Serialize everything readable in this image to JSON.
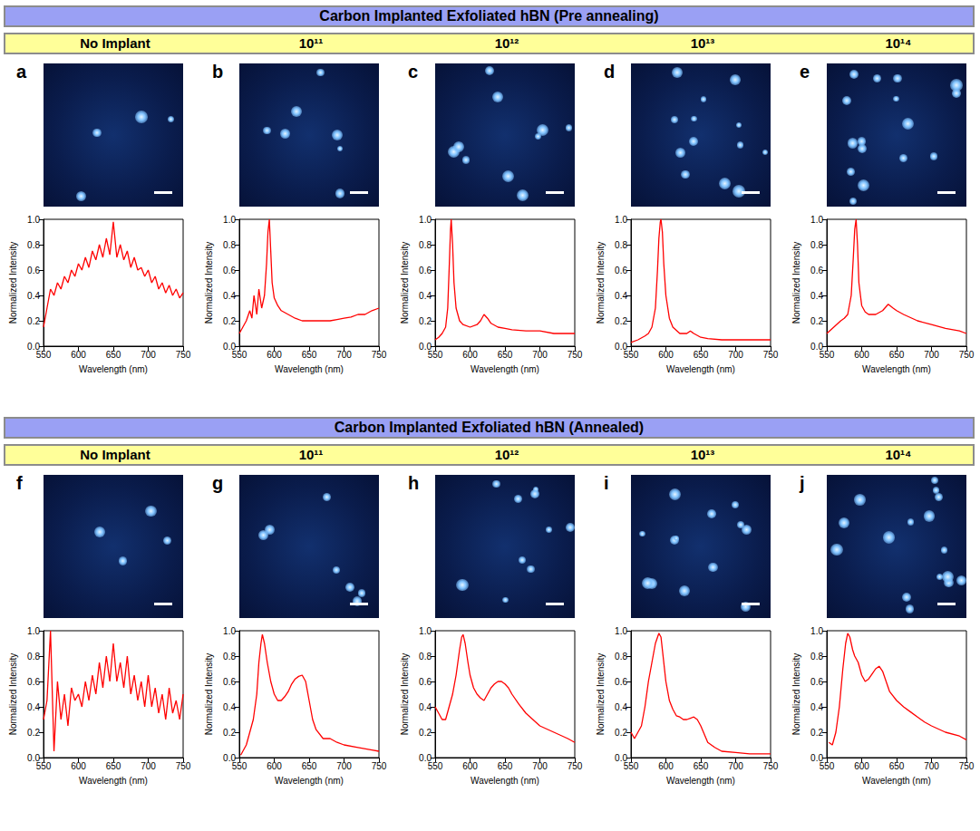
{
  "banners": [
    "Carbon Implanted Exfoliated hBN (Pre annealing)",
    "Carbon Implanted Exfoliated hBN (Annealed)"
  ],
  "chart_data": [
    {
      "type": "line",
      "panel_label": "a",
      "title": "No Implant",
      "xlabel": "Wavelength (nm)",
      "ylabel": "Normalized Intensity",
      "color": "#ff0000",
      "grid": false,
      "xlim": [
        550,
        750
      ],
      "xticks": [
        550,
        600,
        650,
        700,
        750
      ],
      "ylim": [
        0,
        1
      ],
      "yticks": [
        {
          "value": 0,
          "label": "0.0"
        },
        0.2,
        0.4,
        0.6,
        0.8,
        {
          "value": 1,
          "label": "1.0"
        }
      ],
      "x": [
        550,
        555,
        560,
        565,
        570,
        575,
        580,
        585,
        590,
        595,
        600,
        605,
        610,
        615,
        620,
        625,
        630,
        635,
        640,
        645,
        650,
        655,
        660,
        665,
        670,
        675,
        680,
        685,
        690,
        695,
        700,
        705,
        710,
        715,
        720,
        725,
        730,
        735,
        740,
        745,
        750
      ],
      "values": [
        0.15,
        0.3,
        0.45,
        0.4,
        0.5,
        0.45,
        0.55,
        0.5,
        0.6,
        0.55,
        0.65,
        0.6,
        0.7,
        0.62,
        0.75,
        0.68,
        0.8,
        0.7,
        0.85,
        0.72,
        0.98,
        0.7,
        0.8,
        0.68,
        0.75,
        0.62,
        0.7,
        0.6,
        0.62,
        0.55,
        0.6,
        0.5,
        0.55,
        0.45,
        0.5,
        0.42,
        0.48,
        0.4,
        0.45,
        0.38,
        0.42
      ]
    },
    {
      "type": "line",
      "panel_label": "b",
      "title": "10¹¹",
      "xlabel": "Wavelength (nm)",
      "ylabel": "Normalized Intensity",
      "color": "#ff0000",
      "grid": false,
      "xlim": [
        550,
        750
      ],
      "xticks": [
        550,
        600,
        650,
        700,
        750
      ],
      "ylim": [
        0,
        1
      ],
      "yticks": [
        {
          "value": 0,
          "label": "0.0"
        },
        0.2,
        0.4,
        0.6,
        0.8,
        {
          "value": 1,
          "label": "1.0"
        }
      ],
      "x": [
        550,
        555,
        560,
        565,
        568,
        571,
        575,
        578,
        582,
        586,
        589,
        591,
        593,
        595,
        597,
        600,
        605,
        610,
        620,
        630,
        640,
        650,
        660,
        670,
        680,
        690,
        700,
        710,
        720,
        730,
        740,
        750
      ],
      "values": [
        0.1,
        0.15,
        0.2,
        0.28,
        0.22,
        0.4,
        0.25,
        0.45,
        0.3,
        0.4,
        0.65,
        0.9,
        1.0,
        0.75,
        0.5,
        0.38,
        0.32,
        0.28,
        0.25,
        0.22,
        0.2,
        0.2,
        0.2,
        0.2,
        0.2,
        0.21,
        0.22,
        0.23,
        0.25,
        0.25,
        0.28,
        0.3
      ]
    },
    {
      "type": "line",
      "panel_label": "c",
      "title": "10¹²",
      "xlabel": "Wavelength (nm)",
      "ylabel": "Normalized Intensity",
      "color": "#ff0000",
      "grid": false,
      "xlim": [
        550,
        750
      ],
      "xticks": [
        550,
        600,
        650,
        700,
        750
      ],
      "ylim": [
        0,
        1
      ],
      "yticks": [
        {
          "value": 0,
          "label": "0.0"
        },
        0.2,
        0.4,
        0.6,
        0.8,
        {
          "value": 1,
          "label": "1.0"
        }
      ],
      "x": [
        550,
        555,
        560,
        565,
        568,
        570,
        572,
        573,
        575,
        577,
        580,
        585,
        590,
        600,
        610,
        615,
        620,
        625,
        630,
        640,
        650,
        660,
        680,
        700,
        720,
        740,
        750
      ],
      "values": [
        0.05,
        0.07,
        0.1,
        0.15,
        0.3,
        0.6,
        0.92,
        1.0,
        0.8,
        0.5,
        0.3,
        0.2,
        0.17,
        0.15,
        0.17,
        0.2,
        0.25,
        0.22,
        0.18,
        0.15,
        0.14,
        0.13,
        0.12,
        0.12,
        0.1,
        0.1,
        0.1
      ]
    },
    {
      "type": "line",
      "panel_label": "d",
      "title": "10¹³",
      "xlabel": "Wavelength (nm)",
      "ylabel": "Normalized Intensity",
      "color": "#ff0000",
      "grid": false,
      "xlim": [
        550,
        750
      ],
      "xticks": [
        550,
        600,
        650,
        700,
        750
      ],
      "ylim": [
        0,
        1
      ],
      "yticks": [
        {
          "value": 0,
          "label": "0.0"
        },
        0.2,
        0.4,
        0.6,
        0.8,
        {
          "value": 1,
          "label": "1.0"
        }
      ],
      "x": [
        550,
        560,
        570,
        575,
        580,
        585,
        588,
        590,
        592,
        593,
        595,
        597,
        600,
        605,
        610,
        620,
        630,
        635,
        640,
        650,
        660,
        680,
        700,
        720,
        750
      ],
      "values": [
        0.03,
        0.05,
        0.08,
        0.1,
        0.15,
        0.3,
        0.6,
        0.85,
        0.98,
        1.0,
        0.9,
        0.65,
        0.4,
        0.22,
        0.15,
        0.1,
        0.1,
        0.12,
        0.1,
        0.07,
        0.06,
        0.05,
        0.05,
        0.05,
        0.05
      ]
    },
    {
      "type": "line",
      "panel_label": "e",
      "title": "10¹⁴",
      "xlabel": "Wavelength (nm)",
      "ylabel": "Normalized Intensity",
      "color": "#ff0000",
      "grid": false,
      "xlim": [
        550,
        750
      ],
      "xticks": [
        550,
        600,
        650,
        700,
        750
      ],
      "ylim": [
        0,
        1
      ],
      "yticks": [
        {
          "value": 0,
          "label": "0.0"
        },
        0.2,
        0.4,
        0.6,
        0.8,
        {
          "value": 1,
          "label": "1.0"
        }
      ],
      "x": [
        550,
        560,
        570,
        575,
        580,
        585,
        588,
        590,
        592,
        594,
        596,
        600,
        605,
        610,
        620,
        630,
        638,
        645,
        650,
        660,
        680,
        700,
        720,
        740,
        750
      ],
      "values": [
        0.1,
        0.15,
        0.2,
        0.22,
        0.25,
        0.4,
        0.7,
        0.92,
        1.0,
        0.8,
        0.5,
        0.32,
        0.27,
        0.25,
        0.25,
        0.28,
        0.33,
        0.3,
        0.28,
        0.25,
        0.2,
        0.17,
        0.14,
        0.12,
        0.1
      ]
    },
    {
      "type": "line",
      "panel_label": "f",
      "title": "No Implant",
      "xlabel": "Wavelength (nm)",
      "ylabel": "Normalized Intensity",
      "color": "#ff0000",
      "grid": false,
      "xlim": [
        550,
        750
      ],
      "xticks": [
        550,
        600,
        650,
        700,
        750
      ],
      "ylim": [
        0,
        1
      ],
      "yticks": [
        {
          "value": 0,
          "label": "0.0"
        },
        0.2,
        0.4,
        0.6,
        0.8,
        {
          "value": 1,
          "label": "1.0"
        }
      ],
      "x": [
        550,
        555,
        560,
        565,
        570,
        575,
        580,
        585,
        590,
        595,
        600,
        605,
        610,
        615,
        620,
        625,
        630,
        635,
        640,
        645,
        650,
        655,
        660,
        665,
        670,
        675,
        680,
        685,
        690,
        695,
        700,
        705,
        710,
        715,
        720,
        725,
        730,
        735,
        740,
        745,
        750
      ],
      "values": [
        0.3,
        0.45,
        1.0,
        0.05,
        0.6,
        0.3,
        0.5,
        0.25,
        0.55,
        0.45,
        0.5,
        0.4,
        0.6,
        0.45,
        0.65,
        0.5,
        0.75,
        0.55,
        0.8,
        0.6,
        0.9,
        0.6,
        0.75,
        0.55,
        0.8,
        0.5,
        0.65,
        0.45,
        0.6,
        0.4,
        0.65,
        0.4,
        0.55,
        0.35,
        0.5,
        0.3,
        0.55,
        0.35,
        0.45,
        0.3,
        0.5
      ]
    },
    {
      "type": "line",
      "panel_label": "g",
      "title": "10¹¹",
      "xlabel": "Wavelength (nm)",
      "ylabel": "Normalized Intensity",
      "color": "#ff0000",
      "grid": false,
      "xlim": [
        550,
        750
      ],
      "xticks": [
        550,
        600,
        650,
        700,
        750
      ],
      "ylim": [
        0,
        1
      ],
      "yticks": [
        {
          "value": 0,
          "label": "0.0"
        },
        0.2,
        0.4,
        0.6,
        0.8,
        {
          "value": 1,
          "label": "1.0"
        }
      ],
      "x": [
        552,
        560,
        565,
        570,
        575,
        578,
        581,
        583,
        586,
        590,
        595,
        600,
        605,
        610,
        615,
        620,
        625,
        630,
        635,
        640,
        645,
        650,
        655,
        660,
        670,
        680,
        690,
        700,
        720,
        740,
        750
      ],
      "values": [
        0.02,
        0.1,
        0.2,
        0.3,
        0.5,
        0.75,
        0.9,
        0.97,
        0.9,
        0.75,
        0.6,
        0.5,
        0.45,
        0.45,
        0.48,
        0.52,
        0.58,
        0.62,
        0.64,
        0.65,
        0.6,
        0.45,
        0.3,
        0.22,
        0.15,
        0.15,
        0.12,
        0.1,
        0.08,
        0.06,
        0.05
      ]
    },
    {
      "type": "line",
      "panel_label": "h",
      "title": "10¹²",
      "xlabel": "Wavelength (nm)",
      "ylabel": "Normalized Intensity",
      "color": "#ff0000",
      "grid": false,
      "xlim": [
        550,
        750
      ],
      "xticks": [
        550,
        600,
        650,
        700,
        750
      ],
      "ylim": [
        0,
        1
      ],
      "yticks": [
        {
          "value": 0,
          "label": "0.0"
        },
        0.2,
        0.4,
        0.6,
        0.8,
        {
          "value": 1,
          "label": "1.0"
        }
      ],
      "x": [
        550,
        555,
        560,
        565,
        570,
        575,
        580,
        585,
        588,
        590,
        593,
        597,
        600,
        605,
        610,
        615,
        620,
        625,
        630,
        635,
        640,
        645,
        650,
        655,
        660,
        670,
        680,
        690,
        700,
        720,
        740,
        750
      ],
      "values": [
        0.4,
        0.35,
        0.3,
        0.3,
        0.4,
        0.5,
        0.65,
        0.85,
        0.95,
        0.97,
        0.9,
        0.75,
        0.65,
        0.55,
        0.5,
        0.47,
        0.45,
        0.5,
        0.55,
        0.58,
        0.6,
        0.6,
        0.58,
        0.55,
        0.5,
        0.42,
        0.35,
        0.3,
        0.25,
        0.2,
        0.15,
        0.12
      ]
    },
    {
      "type": "line",
      "panel_label": "i",
      "title": "10¹³",
      "xlabel": "Wavelength (nm)",
      "ylabel": "Normalized Intensity",
      "color": "#ff0000",
      "grid": false,
      "xlim": [
        550,
        750
      ],
      "xticks": [
        550,
        600,
        650,
        700,
        750
      ],
      "ylim": [
        0,
        1
      ],
      "yticks": [
        {
          "value": 0,
          "label": "0.0"
        },
        0.2,
        0.4,
        0.6,
        0.8,
        {
          "value": 1,
          "label": "1.0"
        }
      ],
      "x": [
        550,
        555,
        560,
        565,
        570,
        575,
        580,
        585,
        590,
        593,
        597,
        600,
        605,
        610,
        615,
        620,
        625,
        630,
        635,
        640,
        645,
        650,
        660,
        670,
        680,
        700,
        720,
        740,
        750
      ],
      "values": [
        0.2,
        0.15,
        0.2,
        0.25,
        0.4,
        0.6,
        0.75,
        0.9,
        0.98,
        0.95,
        0.75,
        0.6,
        0.45,
        0.38,
        0.33,
        0.32,
        0.3,
        0.3,
        0.31,
        0.32,
        0.3,
        0.25,
        0.12,
        0.08,
        0.05,
        0.04,
        0.03,
        0.03,
        0.03
      ]
    },
    {
      "type": "line",
      "panel_label": "j",
      "title": "10¹⁴",
      "xlabel": "Wavelength (nm)",
      "ylabel": "Normalized Intensity",
      "color": "#ff0000",
      "grid": false,
      "xlim": [
        550,
        750
      ],
      "xticks": [
        550,
        600,
        650,
        700,
        750
      ],
      "ylim": [
        0,
        1
      ],
      "yticks": [
        {
          "value": 0,
          "label": "0.0"
        },
        0.2,
        0.4,
        0.6,
        0.8,
        {
          "value": 1,
          "label": "1.0"
        }
      ],
      "x": [
        553,
        558,
        563,
        568,
        573,
        577,
        580,
        583,
        587,
        590,
        595,
        600,
        605,
        610,
        615,
        620,
        625,
        630,
        635,
        640,
        650,
        660,
        670,
        680,
        690,
        700,
        720,
        740,
        750
      ],
      "values": [
        0.12,
        0.1,
        0.2,
        0.4,
        0.7,
        0.9,
        0.98,
        0.95,
        0.85,
        0.8,
        0.75,
        0.65,
        0.6,
        0.62,
        0.66,
        0.7,
        0.72,
        0.68,
        0.6,
        0.52,
        0.45,
        0.4,
        0.36,
        0.32,
        0.28,
        0.25,
        0.2,
        0.17,
        0.14
      ]
    }
  ]
}
